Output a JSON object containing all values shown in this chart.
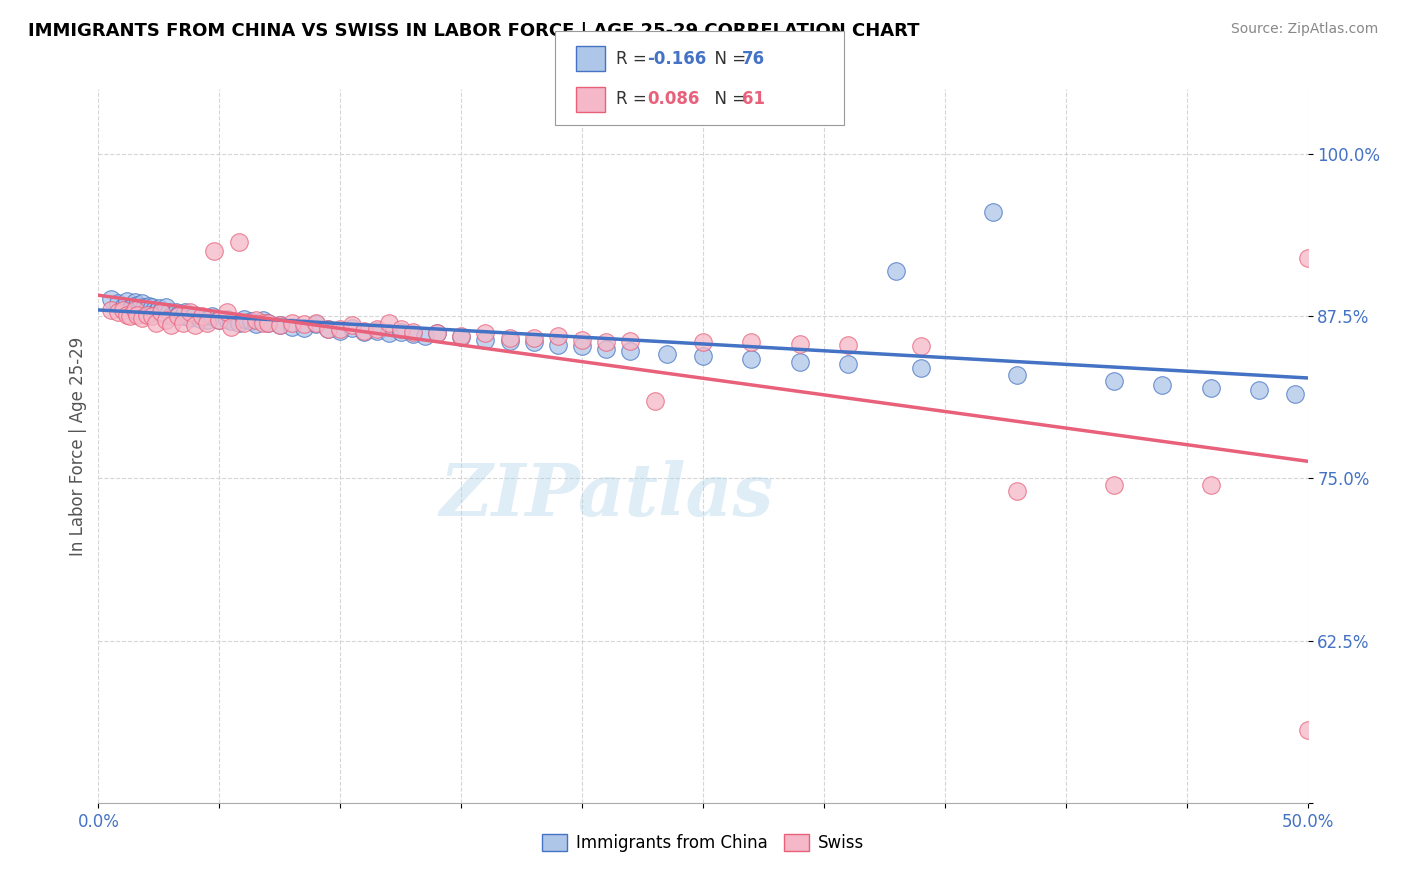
{
  "title": "IMMIGRANTS FROM CHINA VS SWISS IN LABOR FORCE | AGE 25-29 CORRELATION CHART",
  "source": "Source: ZipAtlas.com",
  "ylabel": "In Labor Force | Age 25-29",
  "xlim": [
    0.0,
    0.5
  ],
  "ylim": [
    0.5,
    1.05
  ],
  "xticks": [
    0.0,
    0.05,
    0.1,
    0.15,
    0.2,
    0.25,
    0.3,
    0.35,
    0.4,
    0.45,
    0.5
  ],
  "xtick_labels": [
    "0.0%",
    "",
    "",
    "",
    "",
    "",
    "",
    "",
    "",
    "",
    "50.0%"
  ],
  "yticks": [
    0.5,
    0.625,
    0.75,
    0.875,
    1.0
  ],
  "ytick_labels": [
    "",
    "62.5%",
    "75.0%",
    "87.5%",
    "100.0%"
  ],
  "china_color": "#aec6e8",
  "swiss_color": "#f4b8c8",
  "china_edge_color": "#4472c4",
  "swiss_edge_color": "#e8607a",
  "china_line_color": "#4472c4",
  "swiss_line_color": "#e8607a",
  "watermark": "ZIPatlas",
  "china_x": [
    0.005,
    0.008,
    0.01,
    0.012,
    0.013,
    0.014,
    0.015,
    0.016,
    0.017,
    0.018,
    0.019,
    0.02,
    0.021,
    0.022,
    0.023,
    0.024,
    0.025,
    0.026,
    0.027,
    0.028,
    0.029,
    0.03,
    0.032,
    0.033,
    0.035,
    0.036,
    0.038,
    0.04,
    0.042,
    0.045,
    0.047,
    0.05,
    0.053,
    0.055,
    0.058,
    0.06,
    0.063,
    0.065,
    0.068,
    0.07,
    0.075,
    0.08,
    0.085,
    0.09,
    0.095,
    0.1,
    0.105,
    0.11,
    0.115,
    0.12,
    0.125,
    0.13,
    0.135,
    0.14,
    0.15,
    0.16,
    0.17,
    0.18,
    0.19,
    0.2,
    0.21,
    0.22,
    0.235,
    0.25,
    0.27,
    0.29,
    0.31,
    0.34,
    0.38,
    0.42,
    0.44,
    0.46,
    0.48,
    0.495,
    0.33,
    0.37
  ],
  "china_y": [
    0.888,
    0.885,
    0.882,
    0.887,
    0.88,
    0.883,
    0.886,
    0.884,
    0.882,
    0.885,
    0.882,
    0.88,
    0.883,
    0.882,
    0.88,
    0.878,
    0.881,
    0.879,
    0.877,
    0.882,
    0.878,
    0.875,
    0.878,
    0.876,
    0.875,
    0.878,
    0.874,
    0.876,
    0.873,
    0.872,
    0.875,
    0.872,
    0.873,
    0.871,
    0.87,
    0.873,
    0.871,
    0.869,
    0.872,
    0.87,
    0.868,
    0.867,
    0.866,
    0.869,
    0.865,
    0.864,
    0.866,
    0.863,
    0.864,
    0.862,
    0.863,
    0.861,
    0.86,
    0.862,
    0.859,
    0.857,
    0.856,
    0.855,
    0.853,
    0.852,
    0.85,
    0.848,
    0.846,
    0.844,
    0.842,
    0.84,
    0.838,
    0.835,
    0.83,
    0.825,
    0.822,
    0.82,
    0.818,
    0.815,
    0.91,
    0.955
  ],
  "swiss_x": [
    0.005,
    0.008,
    0.01,
    0.012,
    0.013,
    0.015,
    0.016,
    0.018,
    0.02,
    0.022,
    0.024,
    0.026,
    0.028,
    0.03,
    0.033,
    0.035,
    0.038,
    0.04,
    0.043,
    0.045,
    0.048,
    0.05,
    0.053,
    0.055,
    0.058,
    0.06,
    0.065,
    0.068,
    0.07,
    0.075,
    0.08,
    0.085,
    0.09,
    0.095,
    0.1,
    0.105,
    0.11,
    0.115,
    0.12,
    0.125,
    0.13,
    0.14,
    0.15,
    0.16,
    0.17,
    0.18,
    0.19,
    0.2,
    0.21,
    0.22,
    0.23,
    0.25,
    0.27,
    0.29,
    0.31,
    0.34,
    0.38,
    0.42,
    0.46,
    0.5,
    0.5
  ],
  "swiss_y": [
    0.88,
    0.878,
    0.88,
    0.876,
    0.875,
    0.88,
    0.876,
    0.874,
    0.876,
    0.875,
    0.87,
    0.878,
    0.872,
    0.868,
    0.875,
    0.87,
    0.878,
    0.868,
    0.875,
    0.87,
    0.925,
    0.872,
    0.878,
    0.867,
    0.932,
    0.87,
    0.872,
    0.87,
    0.87,
    0.868,
    0.87,
    0.869,
    0.87,
    0.865,
    0.865,
    0.868,
    0.864,
    0.865,
    0.87,
    0.865,
    0.863,
    0.862,
    0.86,
    0.862,
    0.858,
    0.858,
    0.86,
    0.857,
    0.855,
    0.856,
    0.81,
    0.855,
    0.855,
    0.854,
    0.853,
    0.852,
    0.74,
    0.745,
    0.745,
    0.556,
    0.92
  ]
}
